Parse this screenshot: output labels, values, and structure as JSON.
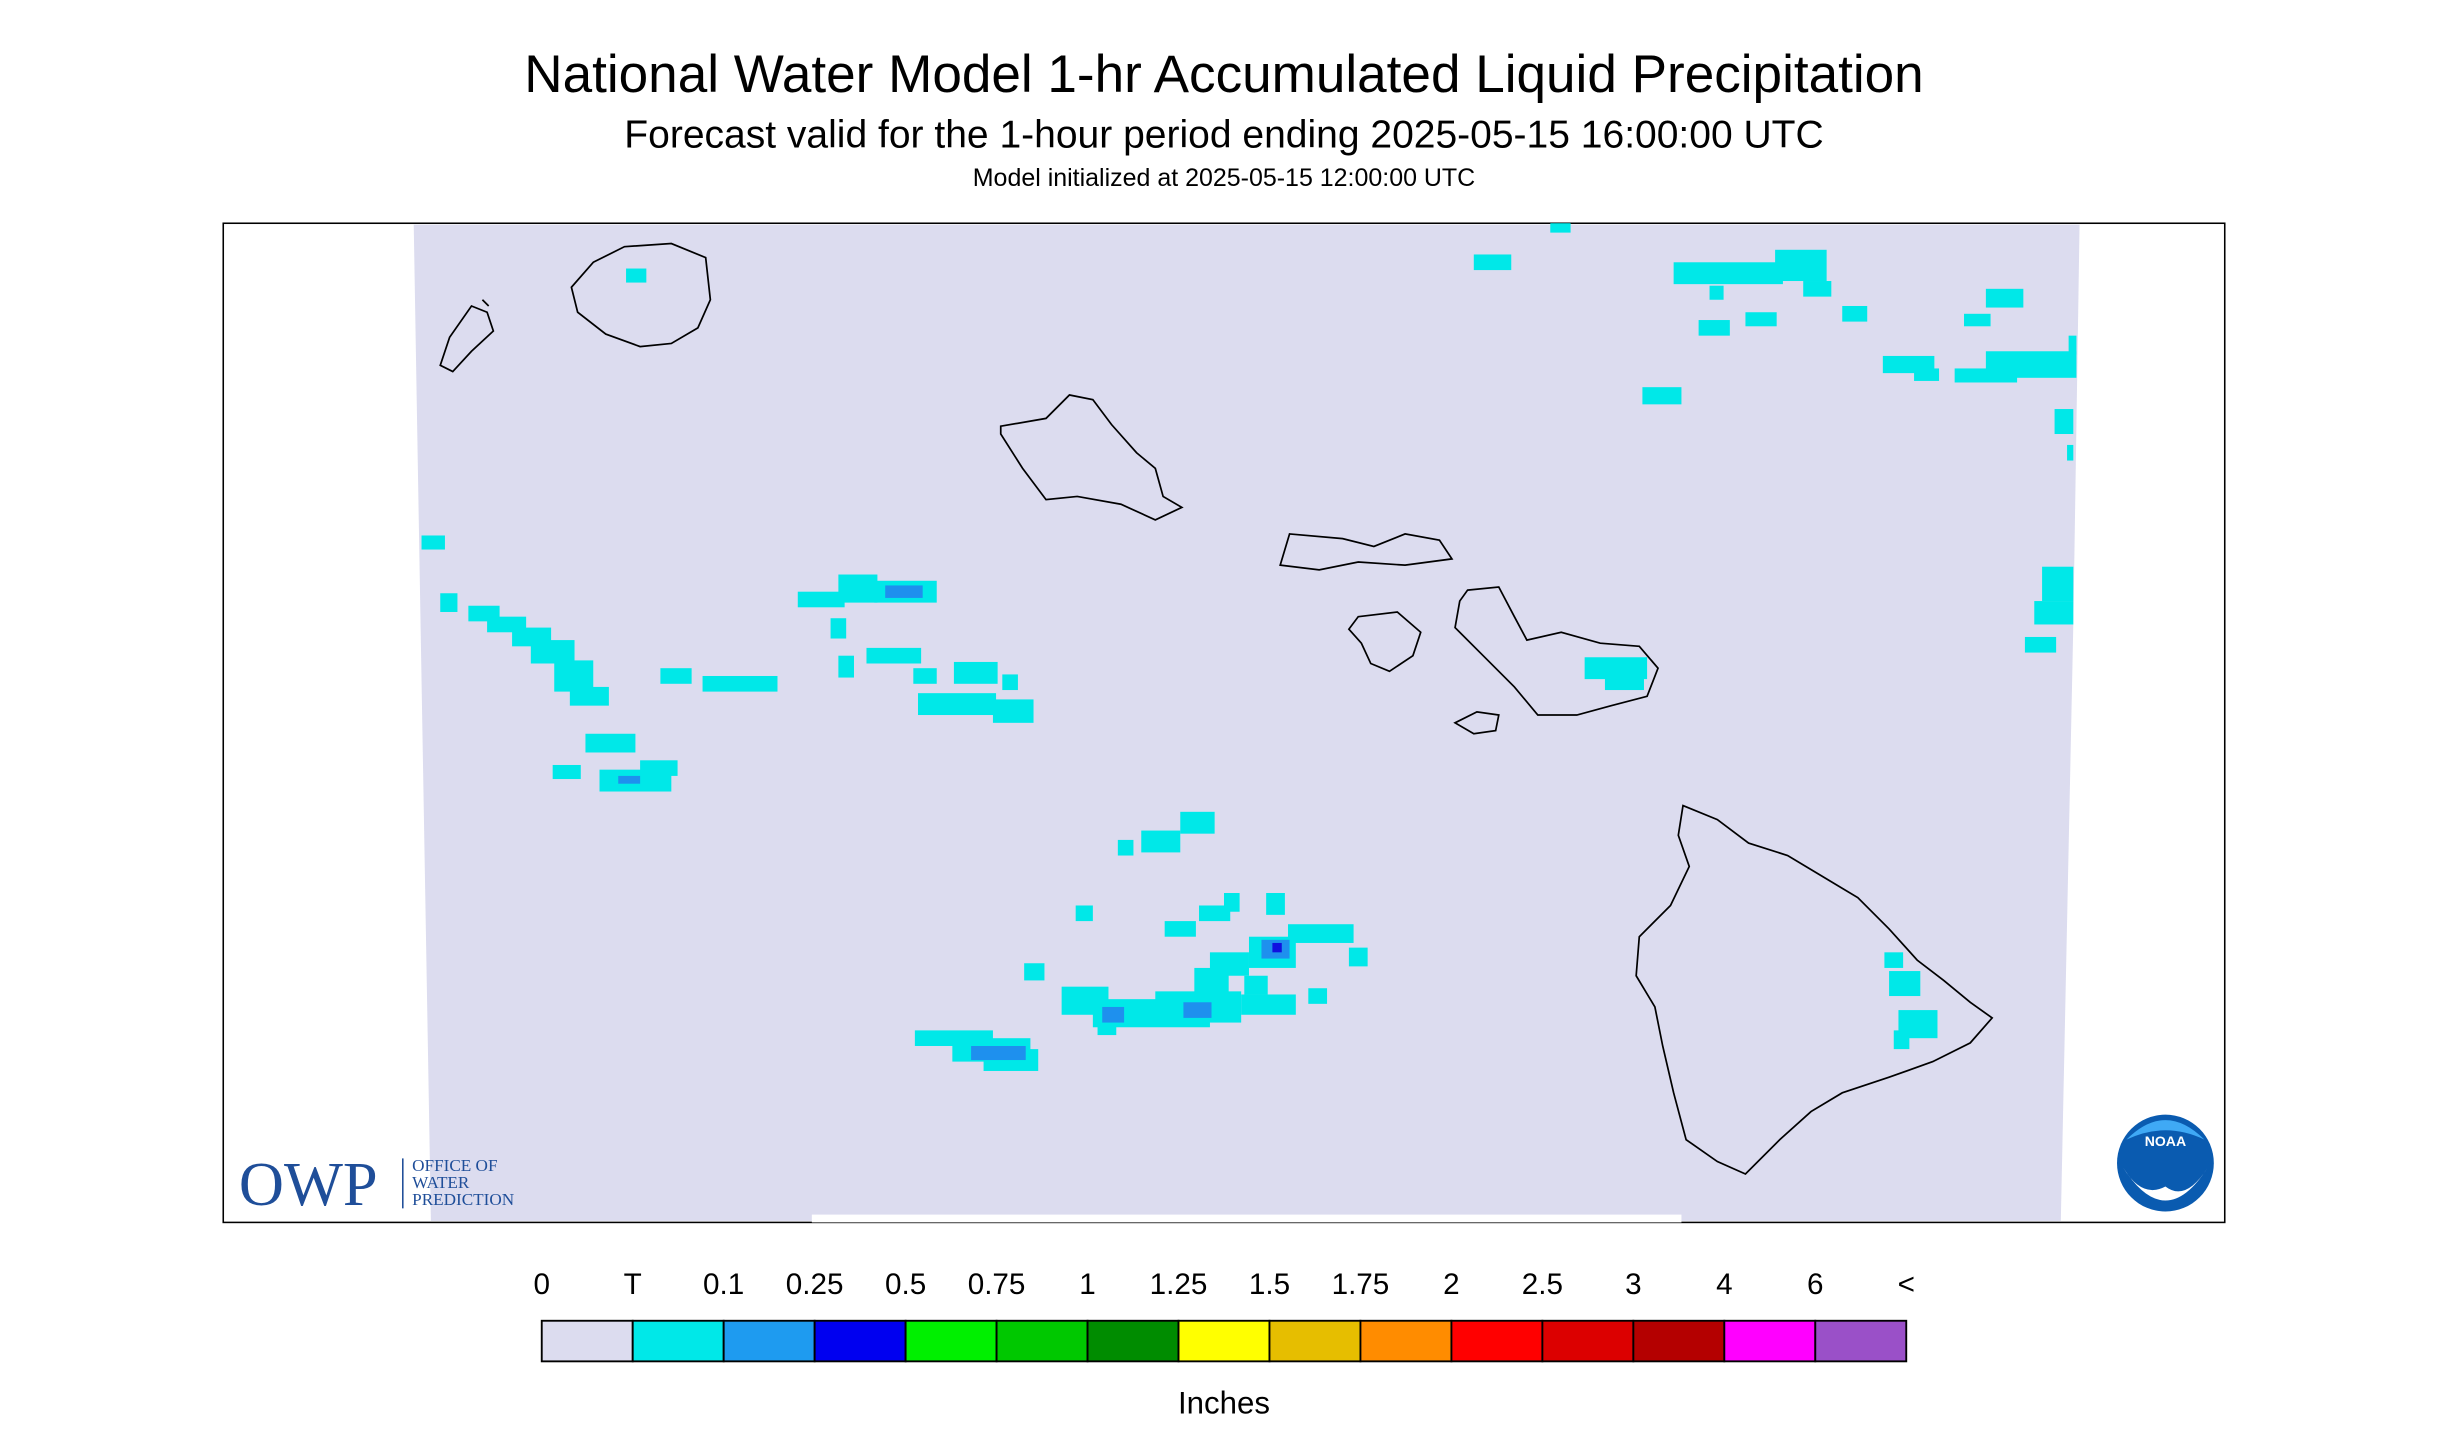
{
  "header": {
    "title": "National Water Model 1-hr Accumulated Liquid Precipitation",
    "subtitle": "Forecast valid for the 1-hour period ending 2025-05-15 16:00:00 UTC",
    "init": "Model initialized at 2025-05-15 12:00:00 UTC"
  },
  "legend": {
    "labels": [
      "0",
      "T",
      "0.1",
      "0.25",
      "0.5",
      "0.75",
      "1",
      "1.25",
      "1.5",
      "1.75",
      "2",
      "2.5",
      "3",
      "4",
      "6",
      "<"
    ],
    "colors": [
      "#dcdcef",
      "#00e8e8",
      "#1e9bf0",
      "#0000f0",
      "#00f000",
      "#00c800",
      "#008c00",
      "#ffff00",
      "#e6be00",
      "#ff8c00",
      "#ff0000",
      "#dc0000",
      "#b40000",
      "#ff00ff",
      "#9a50c8"
    ],
    "unit": "Inches"
  },
  "logos": {
    "owp": "OWP",
    "owp_lines": [
      "OFFICE OF",
      "WATER",
      "PREDICTION"
    ],
    "noaa": "NOAA"
  }
}
